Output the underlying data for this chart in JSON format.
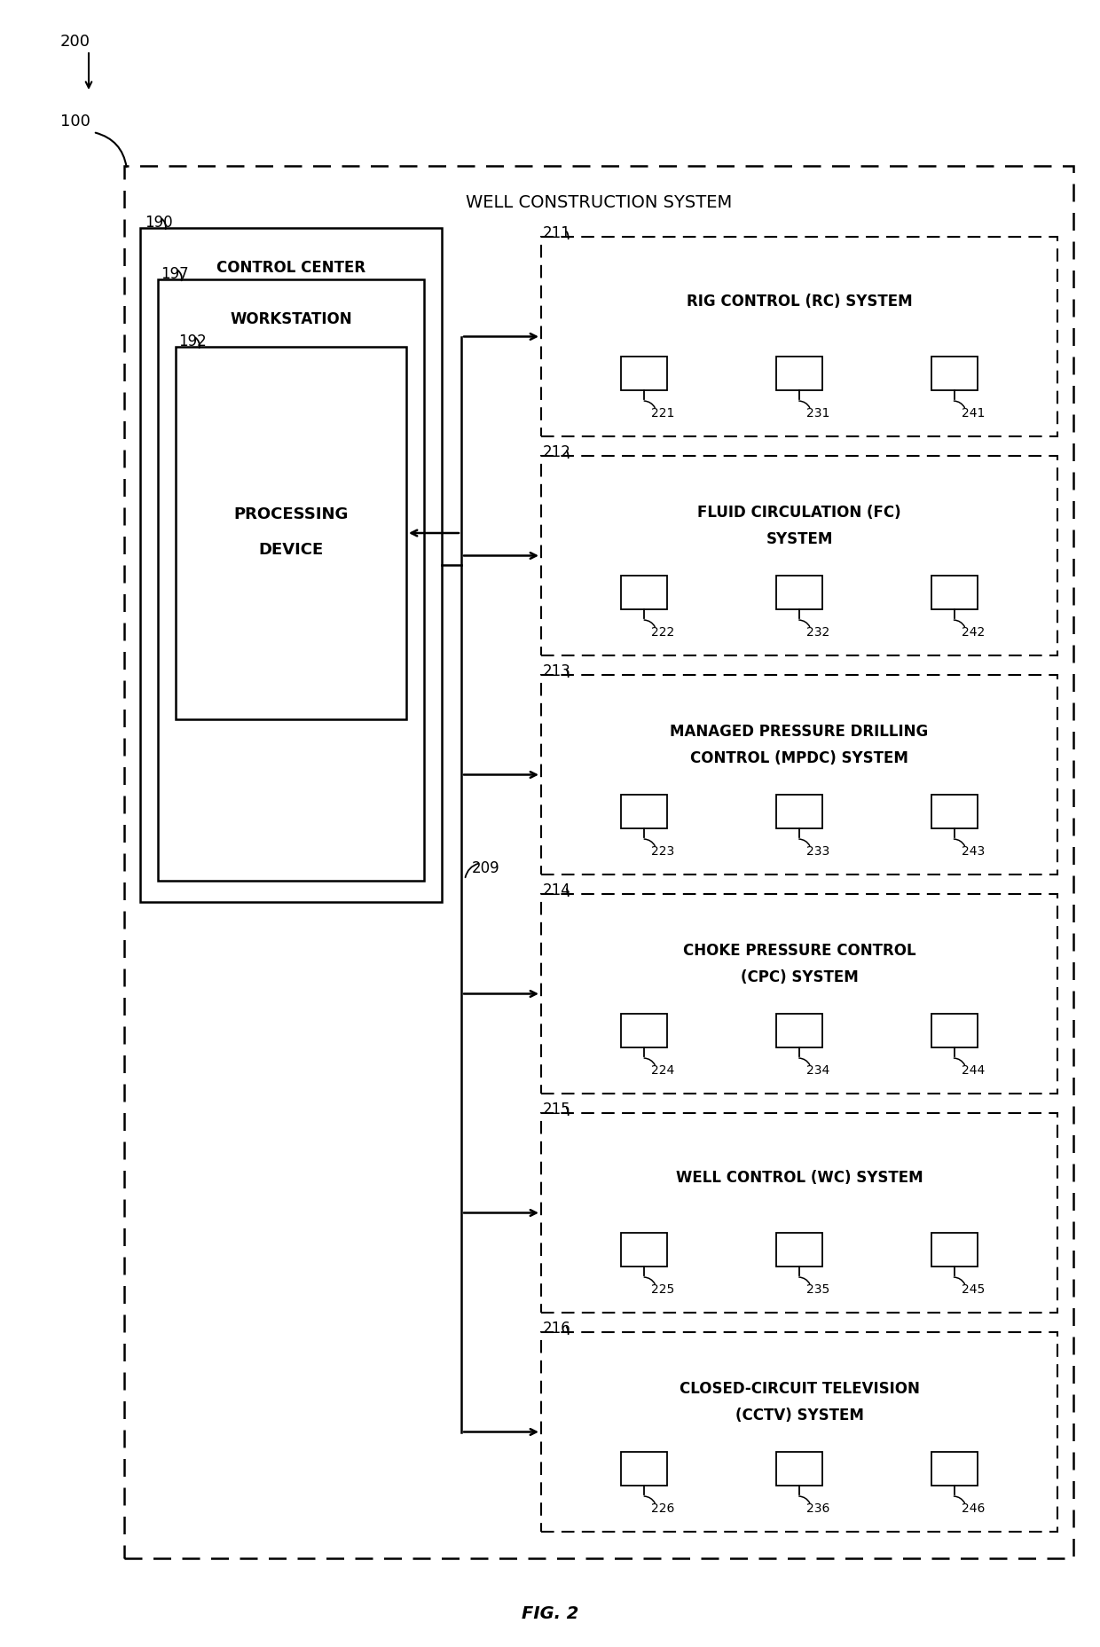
{
  "fig_label": "FIG. 2",
  "label_200": "200",
  "label_100": "100",
  "wcs_label": "WELL CONSTRUCTION SYSTEM",
  "cc_label": "CONTROL CENTER",
  "cc_num": "190",
  "ws_label": "WORKSTATION",
  "ws_num": "197",
  "pd_label1": "PROCESSING",
  "pd_label2": "DEVICE",
  "pd_num": "192",
  "bus_num": "209",
  "systems": [
    {
      "num": "211",
      "lines": [
        "RIG CONTROL (RC) SYSTEM"
      ],
      "cameras": [
        "221",
        "231",
        "241"
      ]
    },
    {
      "num": "212",
      "lines": [
        "FLUID CIRCULATION (FC)",
        "SYSTEM"
      ],
      "cameras": [
        "222",
        "232",
        "242"
      ]
    },
    {
      "num": "213",
      "lines": [
        "MANAGED PRESSURE DRILLING",
        "CONTROL (MPDC) SYSTEM"
      ],
      "cameras": [
        "223",
        "233",
        "243"
      ]
    },
    {
      "num": "214",
      "lines": [
        "CHOKE PRESSURE CONTROL",
        "(CPC) SYSTEM"
      ],
      "cameras": [
        "224",
        "234",
        "244"
      ]
    },
    {
      "num": "215",
      "lines": [
        "WELL CONTROL (WC) SYSTEM"
      ],
      "cameras": [
        "225",
        "235",
        "245"
      ]
    },
    {
      "num": "216",
      "lines": [
        "CLOSED-CIRCUIT TELEVISION",
        "(CCTV) SYSTEM"
      ],
      "cameras": [
        "226",
        "236",
        "246"
      ]
    }
  ],
  "bg_color": "#ffffff"
}
